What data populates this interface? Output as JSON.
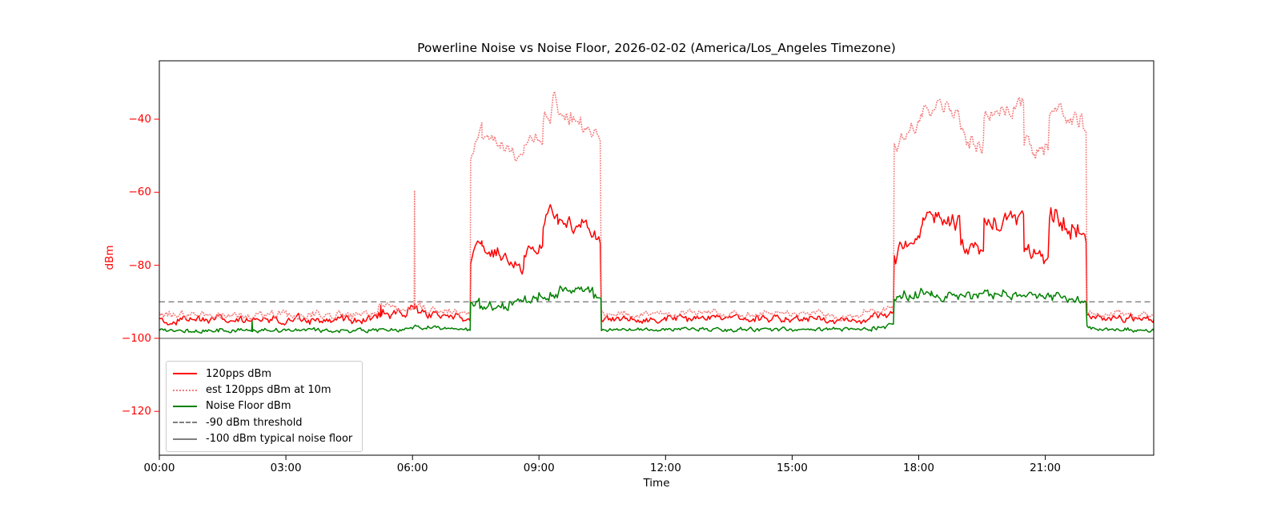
{
  "chart_data": {
    "type": "line",
    "title": "Powerline Noise vs Noise Floor, 2026-02-02 (America/Los_Angeles Timezone)",
    "xlabel": "Time",
    "ylabel": "dBm",
    "x_unit": "hours (local time)",
    "xlim": [
      0,
      23.57
    ],
    "ylim": [
      -132,
      -24
    ],
    "grid": false,
    "legend_position": "lower-left",
    "xtick_color": "#000000",
    "ytick_color": "#ff0000",
    "xticks": [
      {
        "h": 0,
        "label": "00:00"
      },
      {
        "h": 3,
        "label": "03:00"
      },
      {
        "h": 6,
        "label": "06:00"
      },
      {
        "h": 9,
        "label": "09:00"
      },
      {
        "h": 12,
        "label": "12:00"
      },
      {
        "h": 15,
        "label": "15:00"
      },
      {
        "h": 18,
        "label": "18:00"
      },
      {
        "h": 21,
        "label": "21:00"
      }
    ],
    "yticks": [
      {
        "v": -40,
        "label": "−40"
      },
      {
        "v": -60,
        "label": "−60"
      },
      {
        "v": -80,
        "label": "−80"
      },
      {
        "v": -100,
        "label": "−100"
      },
      {
        "v": -120,
        "label": "−120"
      }
    ],
    "segment_format": "[start_hour, end_hour, level_start_dBm, level_end_dBm, noise_amplitude_dB]",
    "series": [
      {
        "name": "120pps dBm",
        "color": "#ff0000",
        "line_style": "solid",
        "segments": [
          [
            0.0,
            5.2,
            -94.8,
            -94.8,
            1.1
          ],
          [
            5.2,
            5.9,
            -93.4,
            -93.0,
            1.5
          ],
          [
            5.9,
            6.3,
            -92.2,
            -92.6,
            1.5
          ],
          [
            6.3,
            7.38,
            -93.6,
            -94.2,
            1.1
          ],
          [
            7.38,
            7.65,
            -80.0,
            -71.5,
            1.6
          ],
          [
            7.65,
            8.1,
            -75.5,
            -77.0,
            1.6
          ],
          [
            8.1,
            8.65,
            -77.5,
            -81.5,
            1.6
          ],
          [
            8.65,
            9.1,
            -76.0,
            -74.0,
            1.8
          ],
          [
            9.1,
            9.45,
            -69.0,
            -64.0,
            2.8
          ],
          [
            9.45,
            10.15,
            -67.5,
            -70.0,
            2.4
          ],
          [
            10.15,
            10.48,
            -71.0,
            -74.0,
            1.6
          ],
          [
            10.48,
            15.8,
            -94.6,
            -94.6,
            0.9
          ],
          [
            15.8,
            16.7,
            -95.4,
            -95.2,
            0.8
          ],
          [
            16.7,
            17.42,
            -94.2,
            -93.4,
            1.0
          ],
          [
            17.42,
            18.1,
            -78.0,
            -69.0,
            2.2
          ],
          [
            18.1,
            19.0,
            -67.0,
            -68.5,
            2.6
          ],
          [
            19.0,
            19.55,
            -74.0,
            -77.0,
            2.6
          ],
          [
            19.55,
            20.5,
            -68.0,
            -67.0,
            2.6
          ],
          [
            20.5,
            21.1,
            -75.5,
            -77.5,
            2.6
          ],
          [
            21.1,
            21.9,
            -67.0,
            -70.0,
            2.6
          ],
          [
            21.9,
            21.99,
            -72.5,
            -74.0,
            1.5
          ],
          [
            21.99,
            23.57,
            -94.3,
            -94.8,
            1.0
          ]
        ],
        "spikes": [
          [
            5.25,
            -91.0
          ],
          [
            6.05,
            -90.6
          ]
        ]
      },
      {
        "name": "est 120pps dBm at 10m",
        "color": "#f47c7c",
        "line_style": "dotted",
        "segments": [
          [
            0.0,
            5.2,
            -93.5,
            -93.5,
            1.1
          ],
          [
            5.2,
            5.9,
            -92.1,
            -91.7,
            1.5
          ],
          [
            5.9,
            6.3,
            -90.9,
            -91.3,
            1.5
          ],
          [
            6.3,
            7.38,
            -92.3,
            -92.9,
            1.1
          ],
          [
            7.38,
            7.65,
            -50.0,
            -42.0,
            1.6
          ],
          [
            7.65,
            8.1,
            -45.5,
            -47.0,
            1.6
          ],
          [
            8.1,
            8.65,
            -47.5,
            -51.5,
            1.6
          ],
          [
            8.65,
            9.1,
            -46.5,
            -44.5,
            1.8
          ],
          [
            9.1,
            9.45,
            -39.5,
            -34.5,
            2.8
          ],
          [
            9.45,
            10.15,
            -38.0,
            -40.5,
            2.4
          ],
          [
            10.15,
            10.48,
            -41.5,
            -44.5,
            1.6
          ],
          [
            10.48,
            15.8,
            -93.3,
            -93.3,
            0.9
          ],
          [
            15.8,
            16.7,
            -94.1,
            -93.9,
            0.8
          ],
          [
            16.7,
            17.42,
            -92.9,
            -92.1,
            1.0
          ],
          [
            17.42,
            18.1,
            -48.5,
            -39.5,
            2.2
          ],
          [
            18.1,
            19.0,
            -37.0,
            -39.0,
            2.6
          ],
          [
            19.0,
            19.55,
            -44.5,
            -47.5,
            2.6
          ],
          [
            19.55,
            20.5,
            -38.5,
            -37.5,
            2.6
          ],
          [
            20.5,
            21.1,
            -46.0,
            -48.5,
            2.8
          ],
          [
            21.1,
            21.9,
            -37.5,
            -40.5,
            2.6
          ],
          [
            21.9,
            21.99,
            -43.0,
            -44.5,
            1.5
          ],
          [
            21.99,
            23.57,
            -93.0,
            -93.7,
            1.0
          ]
        ],
        "spikes": [
          [
            6.05,
            -59.5
          ]
        ]
      },
      {
        "name": "Noise Floor dBm",
        "color": "#008000",
        "line_style": "solid",
        "segments": [
          [
            0.0,
            5.9,
            -97.8,
            -97.8,
            0.55
          ],
          [
            5.9,
            6.4,
            -96.7,
            -96.9,
            0.6
          ],
          [
            6.4,
            7.38,
            -97.2,
            -97.6,
            0.5
          ],
          [
            7.38,
            7.6,
            -90.5,
            -89.8,
            1.2
          ],
          [
            7.6,
            8.3,
            -91.3,
            -91.5,
            1.3
          ],
          [
            8.3,
            9.0,
            -90.3,
            -89.0,
            1.3
          ],
          [
            9.0,
            9.8,
            -88.0,
            -86.8,
            1.4
          ],
          [
            9.8,
            10.3,
            -87.3,
            -88.0,
            1.2
          ],
          [
            10.3,
            10.48,
            -88.3,
            -89.0,
            1.0
          ],
          [
            10.48,
            16.9,
            -97.6,
            -97.6,
            0.5
          ],
          [
            16.9,
            17.42,
            -97.2,
            -96.6,
            0.6
          ],
          [
            17.42,
            18.3,
            -88.3,
            -87.4,
            1.3
          ],
          [
            18.3,
            20.0,
            -88.4,
            -88.0,
            1.3
          ],
          [
            20.0,
            21.5,
            -87.7,
            -88.2,
            1.3
          ],
          [
            21.5,
            21.99,
            -88.6,
            -89.6,
            1.1
          ],
          [
            21.99,
            23.57,
            -97.1,
            -98.0,
            0.55
          ]
        ],
        "spikes": [
          [
            2.2,
            -95.3
          ]
        ]
      }
    ],
    "thresholds": [
      {
        "name": "-90 dBm threshold",
        "value": -90,
        "color": "#7f7f7f",
        "line_style": "dashed"
      },
      {
        "name": "-100 dBm typical noise floor",
        "value": -100,
        "color": "#7f7f7f",
        "line_style": "solid"
      }
    ]
  },
  "legend": {
    "items": [
      {
        "label": "120pps dBm",
        "color": "#ff0000",
        "line_style": "solid"
      },
      {
        "label": "est 120pps dBm at 10m",
        "color": "#f47c7c",
        "line_style": "dotted"
      },
      {
        "label": "Noise Floor dBm",
        "color": "#008000",
        "line_style": "solid"
      },
      {
        "label": "-90 dBm threshold",
        "color": "#7f7f7f",
        "line_style": "dashed"
      },
      {
        "label": "-100 dBm typical noise floor",
        "color": "#7f7f7f",
        "line_style": "solid"
      }
    ]
  }
}
